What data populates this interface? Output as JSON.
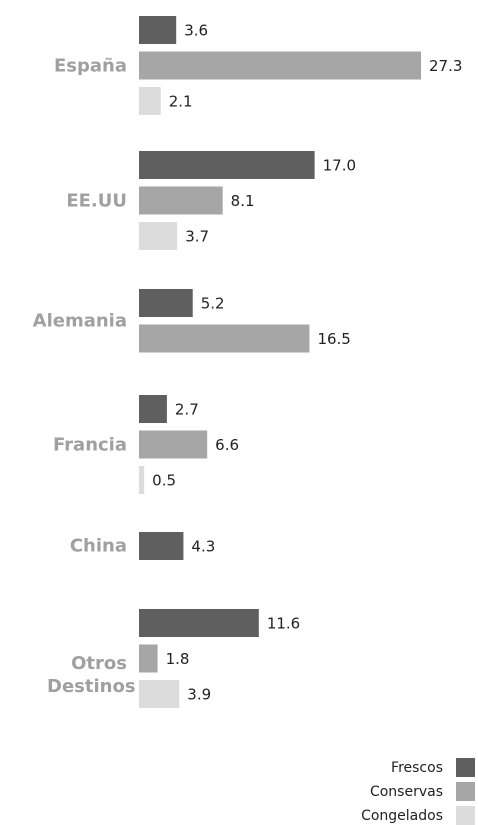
{
  "chart_data": {
    "type": "bar",
    "orientation": "horizontal",
    "categories": [
      "España",
      "EE.UU",
      "Alemania",
      "Francia",
      "China",
      "Otros Destinos"
    ],
    "series": [
      {
        "name": "Frescos",
        "color": "#5f5f5f",
        "values": [
          3.6,
          17.0,
          5.2,
          2.7,
          4.3,
          11.6
        ],
        "value_labels": [
          "3.6",
          "17.0",
          "5.2",
          "2.7",
          "4.3",
          "11.6"
        ]
      },
      {
        "name": "Conservas",
        "color": "#a6a6a6",
        "values": [
          27.3,
          8.1,
          16.5,
          6.6,
          null,
          1.8
        ],
        "value_labels": [
          "27.3",
          "8.1",
          "16.5",
          "6.6",
          null,
          "1.8"
        ]
      },
      {
        "name": "Congelados",
        "color": "#dcdcdc",
        "values": [
          2.1,
          3.7,
          null,
          0.5,
          null,
          3.9
        ],
        "value_labels": [
          "2.1",
          "3.7",
          null,
          "0.5",
          null,
          "3.9"
        ]
      }
    ],
    "legend": "bottom-right"
  }
}
